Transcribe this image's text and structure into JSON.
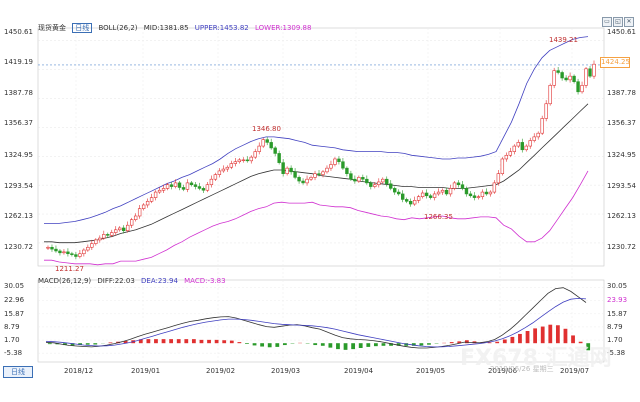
{
  "header": {
    "title": "现货黄金",
    "period": "日线",
    "boll_label": "BOLL(26,2)",
    "mid": "MID:1381.85",
    "upper": "UPPER:1453.82",
    "lower": "LOWER:1309.88"
  },
  "macd_header": {
    "label": "MACD(26,12,9)",
    "diff": "DIFF:22.03",
    "dea": "DEA:23.94",
    "macd": "MACD:-3.83"
  },
  "price_axis": [
    "1450.61",
    "1419.19",
    "1387.78",
    "1356.37",
    "1324.95",
    "1293.54",
    "1262.13",
    "1230.72"
  ],
  "macd_axis": [
    "30.05",
    "22.96",
    "15.87",
    "8.79",
    "1.70",
    "-5.38"
  ],
  "time_axis": [
    "2018/12",
    "2019/01",
    "2019/02",
    "2019/03",
    "2019/04",
    "2019/05",
    "2019/06",
    "2019/07"
  ],
  "annotations": {
    "high_feb": "1346.80",
    "low_dec": "1211.27",
    "low_may": "1266.35",
    "high_jun": "1439.21"
  },
  "current_price": "1424.25",
  "macd_current": "23.93",
  "period_tab": "日线",
  "watermark": "FX678 汇通网",
  "watermark_sub": "2019/06/26 星期三",
  "colors": {
    "up": "#e03030",
    "down": "#2a9a2a",
    "upper_band": "#4040c0",
    "lower_band": "#d030d0",
    "mid_band": "#333333",
    "macd_diff": "#333333",
    "macd_dea": "#4040c0"
  },
  "chart_data": {
    "type": "line",
    "title": "",
    "xlabel": "",
    "ylabel": "",
    "ylim": [
      1210,
      1460
    ],
    "price_series": [
      1226,
      1224,
      1222,
      1220,
      1221,
      1219,
      1218,
      1216,
      1219,
      1223,
      1226,
      1230,
      1234,
      1236,
      1240,
      1239,
      1242,
      1245,
      1247,
      1244,
      1250,
      1256,
      1260,
      1268,
      1272,
      1276,
      1280,
      1286,
      1288,
      1290,
      1294,
      1292,
      1296,
      1291,
      1289,
      1296,
      1294,
      1292,
      1290,
      1288,
      1294,
      1300,
      1305,
      1309,
      1311,
      1313,
      1317,
      1319,
      1321,
      1321,
      1320,
      1324,
      1330,
      1336,
      1343,
      1340,
      1334,
      1328,
      1318,
      1306,
      1312,
      1308,
      1302,
      1298,
      1296,
      1300,
      1302,
      1306,
      1305,
      1308,
      1312,
      1316,
      1322,
      1319,
      1312,
      1306,
      1300,
      1298,
      1302,
      1300,
      1296,
      1292,
      1294,
      1297,
      1300,
      1295,
      1290,
      1286,
      1284,
      1278,
      1276,
      1273,
      1277,
      1281,
      1285,
      1282,
      1280,
      1284,
      1286,
      1288,
      1284,
      1290,
      1296,
      1294,
      1290,
      1284,
      1282,
      1280,
      1281,
      1286,
      1284,
      1286,
      1296,
      1306,
      1322,
      1326,
      1330,
      1336,
      1340,
      1332,
      1336,
      1342,
      1346,
      1350,
      1366,
      1382,
      1402,
      1418,
      1416,
      1410,
      1408,
      1412,
      1406,
      1395,
      1402,
      1420,
      1412,
      1425
    ],
    "boll_upper": [
      1252,
      1252,
      1252,
      1253,
      1254,
      1256,
      1258,
      1261,
      1264,
      1268,
      1271,
      1275,
      1279,
      1283,
      1287,
      1291,
      1295,
      1298,
      1302,
      1305,
      1309,
      1313,
      1317,
      1322,
      1328,
      1333,
      1337,
      1341,
      1344,
      1346,
      1346,
      1345,
      1344,
      1342,
      1340,
      1337,
      1336,
      1335,
      1334,
      1332,
      1331,
      1330,
      1330,
      1330,
      1330,
      1329,
      1329,
      1328,
      1326,
      1325,
      1324,
      1323,
      1322,
      1322,
      1323,
      1323,
      1324,
      1325,
      1327,
      1330,
      1346,
      1362,
      1382,
      1404,
      1420,
      1432,
      1440,
      1444,
      1448,
      1452,
      1454,
      1455
    ],
    "boll_mid": [
      1232,
      1232,
      1231,
      1231,
      1231,
      1232,
      1233,
      1234,
      1236,
      1238,
      1241,
      1243,
      1245,
      1248,
      1251,
      1255,
      1259,
      1263,
      1267,
      1271,
      1275,
      1279,
      1283,
      1287,
      1291,
      1295,
      1299,
      1303,
      1306,
      1308,
      1310,
      1310,
      1309,
      1308,
      1307,
      1306,
      1304,
      1303,
      1302,
      1301,
      1300,
      1298,
      1297,
      1296,
      1295,
      1294,
      1293,
      1292,
      1292,
      1291,
      1291,
      1291,
      1291,
      1290,
      1290,
      1290,
      1291,
      1292,
      1293,
      1294,
      1298,
      1304,
      1310,
      1318,
      1326,
      1334,
      1342,
      1350,
      1358,
      1366,
      1374,
      1382
    ],
    "boll_lower": [
      1212,
      1212,
      1210,
      1209,
      1208,
      1208,
      1208,
      1207,
      1208,
      1208,
      1211,
      1211,
      1211,
      1213,
      1215,
      1219,
      1223,
      1228,
      1232,
      1237,
      1241,
      1245,
      1249,
      1252,
      1254,
      1257,
      1261,
      1265,
      1268,
      1270,
      1274,
      1275,
      1274,
      1274,
      1274,
      1275,
      1272,
      1271,
      1270,
      1270,
      1269,
      1266,
      1264,
      1262,
      1260,
      1259,
      1257,
      1256,
      1258,
      1257,
      1258,
      1259,
      1260,
      1258,
      1257,
      1257,
      1258,
      1259,
      1259,
      1258,
      1250,
      1246,
      1238,
      1232,
      1232,
      1236,
      1244,
      1256,
      1268,
      1280,
      1294,
      1309
    ],
    "macd_diff": [
      0.5,
      0.2,
      -0.5,
      -1.2,
      -1.5,
      -1.8,
      -2.0,
      -1.6,
      -1.0,
      -0.2,
      0.8,
      2.0,
      3.5,
      4.8,
      6.0,
      7.2,
      8.4,
      9.6,
      10.8,
      11.8,
      12.4,
      13.2,
      13.8,
      14.2,
      14.4,
      13.6,
      12.4,
      11.2,
      10.0,
      9.0,
      8.6,
      9.2,
      9.8,
      10.0,
      9.4,
      8.4,
      7.6,
      6.0,
      4.4,
      3.0,
      2.4,
      2.0,
      1.8,
      1.4,
      0.8,
      0.0,
      -0.8,
      -1.6,
      -2.2,
      -2.6,
      -2.6,
      -2.2,
      -1.8,
      -1.2,
      -0.4,
      0.6,
      0.4,
      0.2,
      0.8,
      2.0,
      4.4,
      7.4,
      11.0,
      15.0,
      19.0,
      23.0,
      27.0,
      29.5,
      30.0,
      28.0,
      25.0,
      22.0
    ],
    "macd_dea": [
      1.0,
      0.8,
      0.5,
      0.0,
      -0.5,
      -1.0,
      -1.3,
      -1.5,
      -1.4,
      -1.0,
      -0.4,
      0.4,
      1.4,
      2.6,
      3.8,
      5.0,
      6.2,
      7.4,
      8.6,
      9.6,
      10.6,
      11.4,
      12.0,
      12.6,
      13.0,
      13.0,
      12.8,
      12.4,
      11.8,
      11.2,
      10.6,
      10.2,
      10.0,
      9.8,
      9.6,
      9.4,
      9.0,
      8.4,
      7.6,
      6.6,
      5.6,
      4.6,
      3.8,
      3.0,
      2.2,
      1.4,
      0.6,
      -0.2,
      -0.8,
      -1.4,
      -1.8,
      -2.0,
      -2.0,
      -1.8,
      -1.4,
      -1.0,
      -0.6,
      -0.2,
      0.4,
      1.2,
      2.4,
      4.0,
      6.0,
      8.4,
      11.0,
      14.0,
      17.0,
      19.8,
      22.2,
      23.8,
      24.2,
      23.94
    ],
    "macd_hist": [
      -0.5,
      -0.6,
      -1.0,
      -1.2,
      -1.0,
      -0.8,
      -0.7,
      -0.1,
      0.4,
      0.8,
      1.2,
      1.6,
      2.1,
      2.2,
      2.2,
      2.2,
      2.2,
      2.2,
      2.2,
      2.2,
      1.8,
      1.8,
      1.8,
      1.6,
      1.4,
      0.6,
      -0.4,
      -1.2,
      -1.8,
      -2.2,
      -2.0,
      -1.0,
      -0.2,
      0.2,
      -0.2,
      -1.0,
      -1.4,
      -2.4,
      -3.2,
      -3.6,
      -3.2,
      -2.6,
      -2.0,
      -1.6,
      -1.4,
      -1.4,
      -1.4,
      -1.4,
      -1.4,
      -1.2,
      -0.8,
      -0.2,
      0.2,
      0.6,
      1.0,
      1.6,
      1.0,
      0.4,
      0.4,
      0.8,
      2.0,
      3.4,
      5.0,
      6.6,
      8.0,
      9.0,
      10.0,
      9.7,
      7.8,
      4.2,
      0.8,
      -3.83
    ]
  }
}
